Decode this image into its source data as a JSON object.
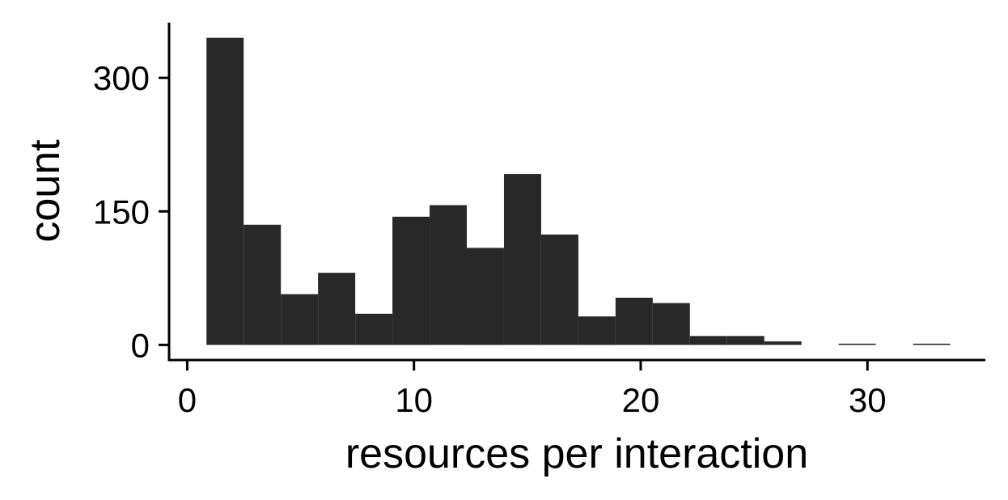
{
  "chart_data": {
    "type": "bar",
    "subtype": "histogram",
    "title": "",
    "xlabel": "resources per interaction",
    "ylabel": "count",
    "bin_width": 1.64,
    "bins": [
      {
        "x_start": 0.85,
        "x_end": 2.49,
        "count": 345
      },
      {
        "x_start": 2.49,
        "x_end": 4.13,
        "count": 135
      },
      {
        "x_start": 4.13,
        "x_end": 5.77,
        "count": 57
      },
      {
        "x_start": 5.77,
        "x_end": 7.41,
        "count": 81
      },
      {
        "x_start": 7.41,
        "x_end": 9.05,
        "count": 35
      },
      {
        "x_start": 9.05,
        "x_end": 10.69,
        "count": 144
      },
      {
        "x_start": 10.69,
        "x_end": 12.33,
        "count": 157
      },
      {
        "x_start": 12.33,
        "x_end": 13.97,
        "count": 109
      },
      {
        "x_start": 13.97,
        "x_end": 15.61,
        "count": 192
      },
      {
        "x_start": 15.61,
        "x_end": 17.25,
        "count": 124
      },
      {
        "x_start": 17.25,
        "x_end": 18.89,
        "count": 32
      },
      {
        "x_start": 18.89,
        "x_end": 20.53,
        "count": 53
      },
      {
        "x_start": 20.53,
        "x_end": 22.17,
        "count": 47
      },
      {
        "x_start": 22.17,
        "x_end": 23.81,
        "count": 10
      },
      {
        "x_start": 23.81,
        "x_end": 25.45,
        "count": 10
      },
      {
        "x_start": 25.45,
        "x_end": 27.09,
        "count": 4
      },
      {
        "x_start": 27.09,
        "x_end": 28.73,
        "count": 0
      },
      {
        "x_start": 28.73,
        "x_end": 30.37,
        "count": 1
      },
      {
        "x_start": 30.37,
        "x_end": 32.01,
        "count": 0
      },
      {
        "x_start": 32.01,
        "x_end": 33.65,
        "count": 1
      }
    ],
    "x_ticks": [
      0,
      10,
      20,
      30
    ],
    "x_tick_labels": [
      "0",
      "10",
      "20",
      "30"
    ],
    "y_ticks": [
      0,
      150,
      300
    ],
    "y_tick_labels": [
      "0",
      "150",
      "300"
    ],
    "xlim": [
      -0.8,
      35.2
    ],
    "ylim": [
      -17,
      362
    ],
    "grid": false,
    "legend": "none",
    "bar_color": "#282828",
    "axis_color": "#000000"
  }
}
